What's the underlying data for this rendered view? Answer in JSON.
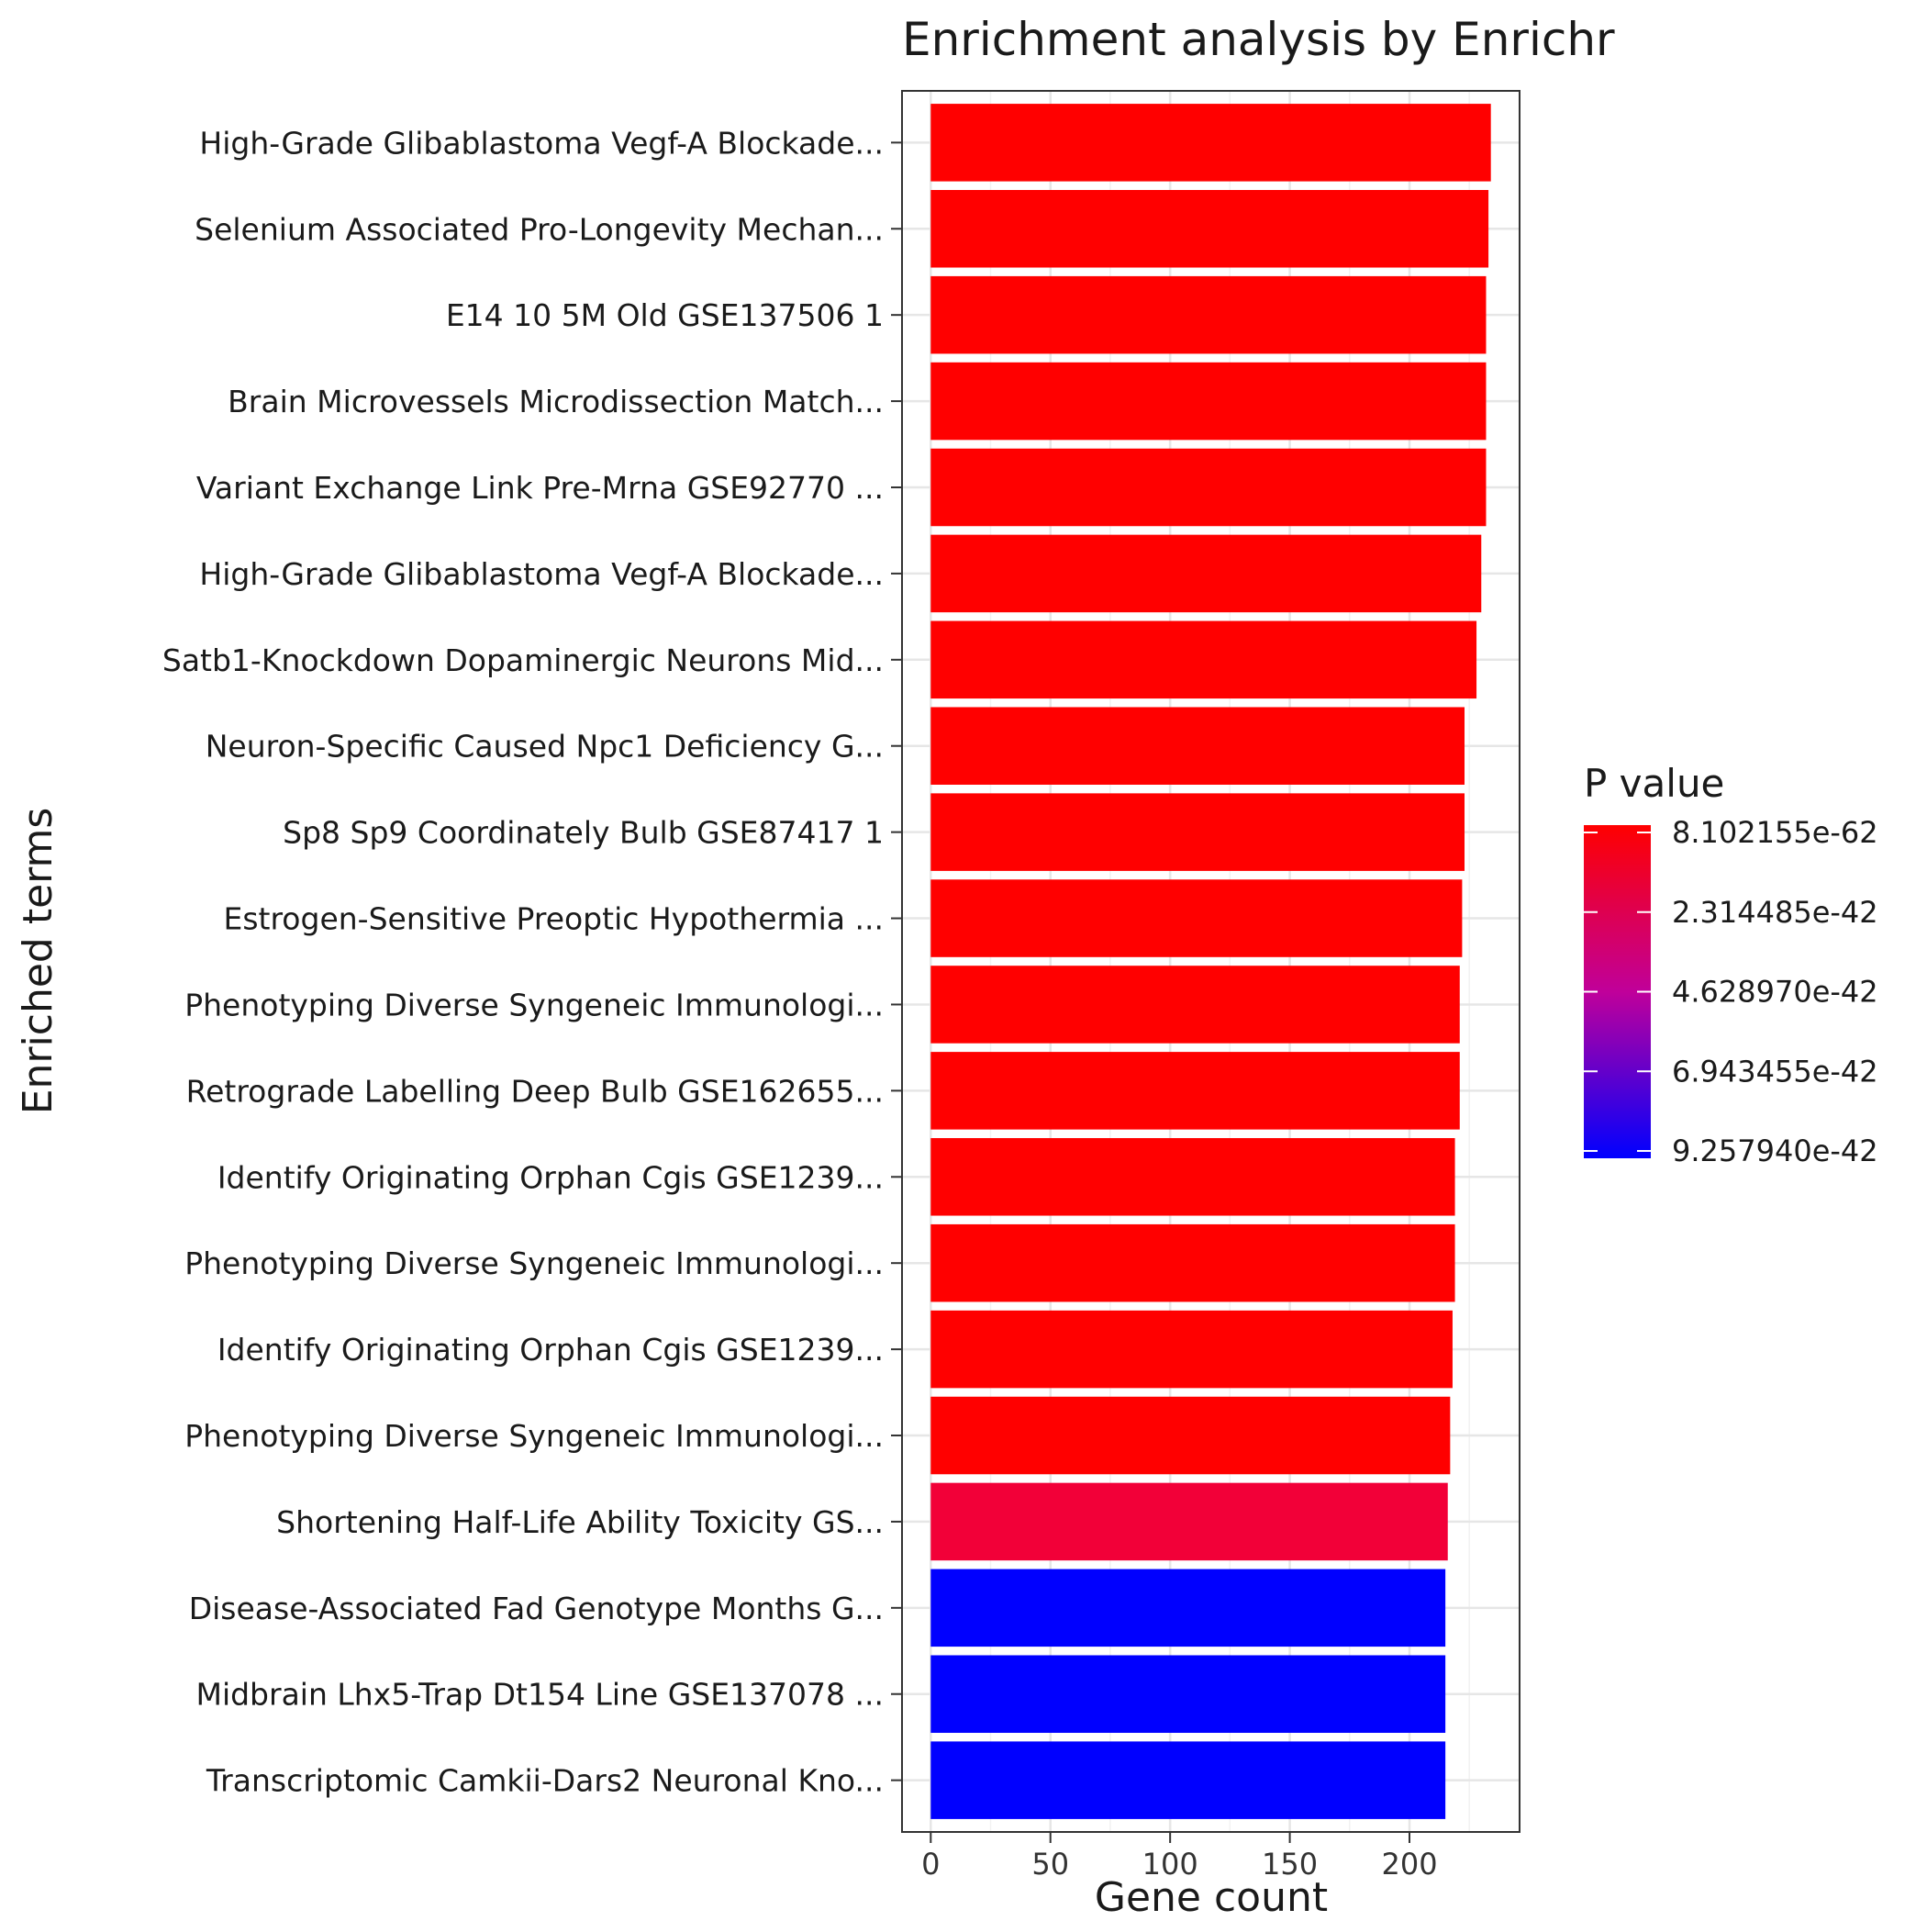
{
  "chart_data": {
    "type": "bar",
    "orientation": "horizontal",
    "title": "Enrichment analysis by Enrichr",
    "xlabel": "Gene count",
    "ylabel": "Enriched terms",
    "xlim": [
      -12,
      246
    ],
    "x_ticks": [
      0,
      50,
      100,
      150,
      200
    ],
    "grid": true,
    "categories": [
      "High-Grade Glibablastoma Vegf-A Blockade...",
      "Selenium Associated Pro-Longevity Mechan...",
      "E14 10 5M Old GSE137506 1",
      "Brain Microvessels Microdissection Match...",
      "Variant Exchange Link Pre-Mrna GSE92770 ...",
      "High-Grade Glibablastoma Vegf-A Blockade...",
      "Satb1-Knockdown Dopaminergic Neurons Mid...",
      "Neuron-Specific Caused Npc1 Deficiency G...",
      "Sp8 Sp9 Coordinately Bulb GSE87417 1",
      "Estrogen-Sensitive Preoptic Hypothermia ...",
      "Phenotyping Diverse Syngeneic Immunologi...",
      "Retrograde Labelling Deep Bulb GSE162655...",
      "Identify Originating Orphan Cgis GSE1239...",
      "Phenotyping Diverse Syngeneic Immunologi...",
      "Identify Originating Orphan Cgis GSE1239...",
      "Phenotyping Diverse Syngeneic Immunologi...",
      "Shortening Half-Life Ability Toxicity GS...",
      "Disease-Associated Fad Genotype Months G...",
      "Midbrain Lhx5-Trap Dt154 Line GSE137078 ...",
      "Transcriptomic Camkii-Dars2 Neuronal Kno..."
    ],
    "values": [
      234,
      233,
      232,
      232,
      232,
      230,
      228,
      223,
      223,
      222,
      221,
      221,
      219,
      219,
      218,
      217,
      216,
      215,
      215,
      215
    ],
    "colors": [
      "#ff0000",
      "#ff0000",
      "#ff0000",
      "#ff0000",
      "#ff0000",
      "#ff0000",
      "#ff0000",
      "#ff0000",
      "#ff0000",
      "#ff0000",
      "#ff0000",
      "#ff0000",
      "#ff0000",
      "#ff0000",
      "#ff0000",
      "#ff0000",
      "#f20038",
      "#0000ff",
      "#0000ff",
      "#0000ff"
    ],
    "legend": {
      "title": "P value",
      "position": "right",
      "labels": [
        "8.102155e-62",
        "2.314485e-42",
        "4.628970e-42",
        "6.943455e-42",
        "9.257940e-42"
      ],
      "color_low": "#ff0000",
      "color_high": "#0000ff"
    }
  }
}
